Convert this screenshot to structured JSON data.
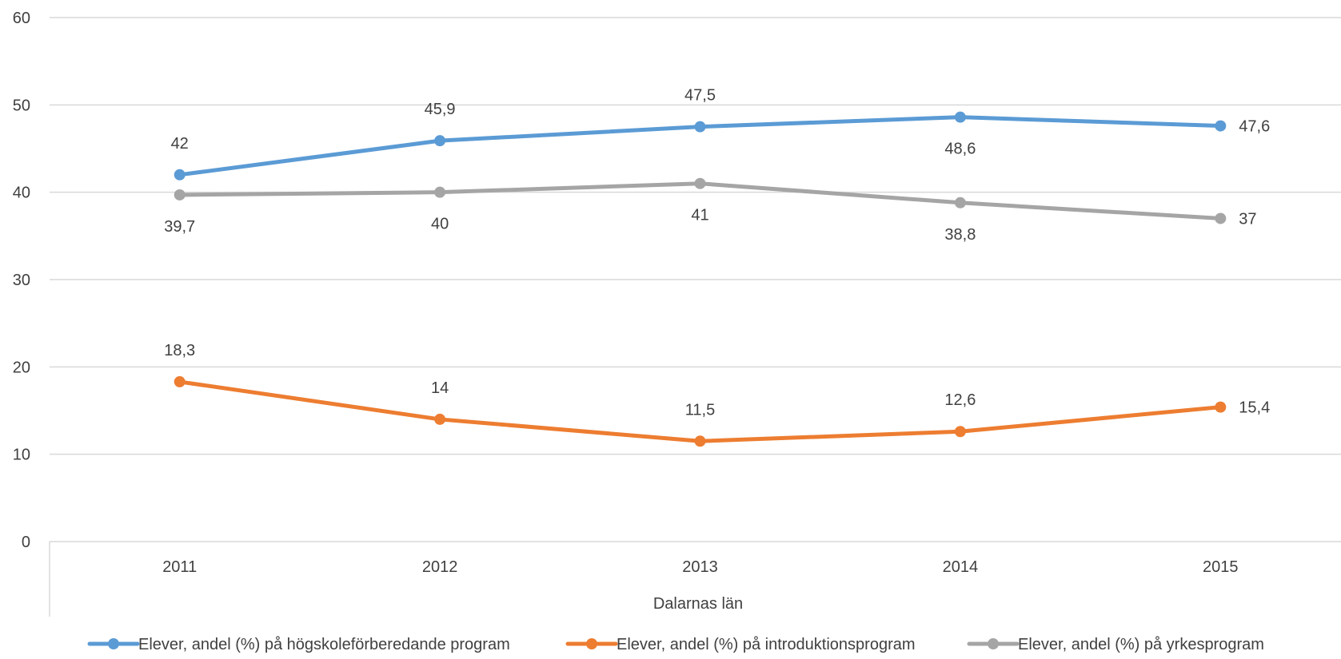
{
  "chart_data": {
    "type": "line",
    "title": "",
    "xlabel": "Dalarnas län",
    "ylabel": "",
    "categories": [
      "2011",
      "2012",
      "2013",
      "2014",
      "2015"
    ],
    "ylim": [
      0,
      60
    ],
    "yticks": [
      0,
      10,
      20,
      30,
      40,
      50,
      60
    ],
    "grid": true,
    "legend_position": "bottom",
    "series": [
      {
        "name": "Elever, andel (%) på högskoleförberedande program",
        "color": "#5b9bd5",
        "values": [
          42,
          45.9,
          47.5,
          48.6,
          47.6
        ],
        "labels": [
          "42",
          "45,9",
          "47,5",
          "48,6",
          "47,6"
        ],
        "label_positions": [
          "above",
          "above",
          "above",
          "below",
          "right"
        ]
      },
      {
        "name": "Elever, andel (%) på introduktionsprogram",
        "color": "#ed7d31",
        "values": [
          18.3,
          14,
          11.5,
          12.6,
          15.4
        ],
        "labels": [
          "18,3",
          "14",
          "11,5",
          "12,6",
          "15,4"
        ],
        "label_positions": [
          "above",
          "above",
          "above",
          "above",
          "right"
        ]
      },
      {
        "name": "Elever, andel (%) på yrkesprogram",
        "color": "#a5a5a5",
        "values": [
          39.7,
          40,
          41,
          38.8,
          37
        ],
        "labels": [
          "39,7",
          "40",
          "41",
          "38,8",
          "37"
        ],
        "label_positions": [
          "below",
          "below",
          "below",
          "below",
          "right"
        ]
      }
    ]
  }
}
